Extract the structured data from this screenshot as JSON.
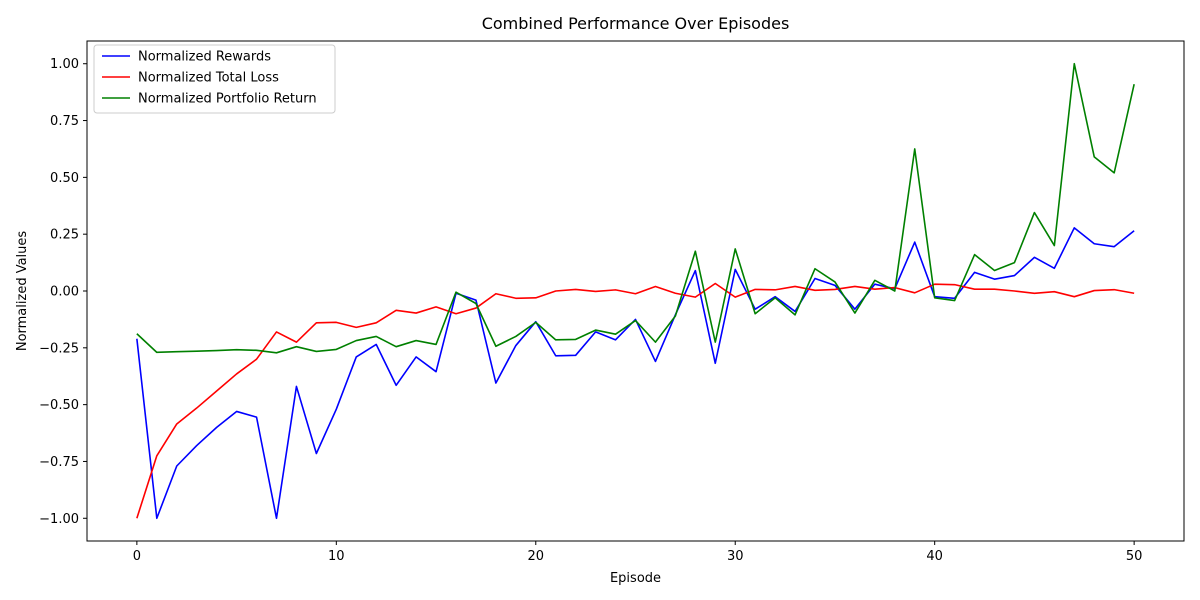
{
  "chart_data": {
    "type": "line",
    "title": "Combined Performance Over Episodes",
    "xlabel": "Episode",
    "ylabel": "Normalized Values",
    "xlim": [
      -2.5,
      52.5
    ],
    "ylim": [
      -1.1,
      1.1
    ],
    "xticks": [
      0,
      10,
      20,
      30,
      40,
      50
    ],
    "xtick_labels": [
      "0",
      "10",
      "20",
      "30",
      "40",
      "50"
    ],
    "yticks": [
      -1.0,
      -0.75,
      -0.5,
      -0.25,
      0.0,
      0.25,
      0.5,
      0.75,
      1.0
    ],
    "ytick_labels": [
      "−1.00",
      "−0.75",
      "−0.50",
      "−0.25",
      "0.00",
      "0.25",
      "0.50",
      "0.75",
      "1.00"
    ],
    "grid": false,
    "legend_position": "top-left",
    "x": [
      0,
      1,
      2,
      3,
      4,
      5,
      6,
      7,
      8,
      9,
      10,
      11,
      12,
      13,
      14,
      15,
      16,
      17,
      18,
      19,
      20,
      21,
      22,
      23,
      24,
      25,
      26,
      27,
      28,
      29,
      30,
      31,
      32,
      33,
      34,
      35,
      36,
      37,
      38,
      39,
      40,
      41,
      42,
      43,
      44,
      45,
      46,
      47,
      48,
      49,
      50
    ],
    "series": [
      {
        "name": "Normalized Rewards",
        "color": "#0000ff",
        "values": [
          -0.21,
          -1.0,
          -0.77,
          -0.68,
          -0.6,
          -0.53,
          -0.555,
          -1.0,
          -0.42,
          -0.715,
          -0.52,
          -0.29,
          -0.235,
          -0.415,
          -0.29,
          -0.355,
          -0.01,
          -0.04,
          -0.405,
          -0.24,
          -0.135,
          -0.285,
          -0.283,
          -0.18,
          -0.215,
          -0.125,
          -0.31,
          -0.105,
          0.09,
          -0.318,
          0.095,
          -0.08,
          -0.025,
          -0.09,
          0.055,
          0.025,
          -0.08,
          0.03,
          0.01,
          0.215,
          -0.025,
          -0.032,
          0.082,
          0.052,
          0.068,
          0.148,
          0.1,
          0.278,
          0.208,
          0.195,
          0.265
        ]
      },
      {
        "name": "Normalized Total Loss",
        "color": "#ff0000",
        "values": [
          -1.0,
          -0.725,
          -0.585,
          -0.515,
          -0.44,
          -0.365,
          -0.3,
          -0.18,
          -0.225,
          -0.14,
          -0.138,
          -0.16,
          -0.14,
          -0.085,
          -0.097,
          -0.07,
          -0.1,
          -0.075,
          -0.012,
          -0.032,
          -0.03,
          0.0,
          0.007,
          -0.002,
          0.005,
          -0.012,
          0.02,
          -0.01,
          -0.027,
          0.033,
          -0.027,
          0.007,
          0.005,
          0.02,
          0.003,
          0.007,
          0.02,
          0.008,
          0.015,
          -0.008,
          0.03,
          0.028,
          0.008,
          0.008,
          0.0,
          -0.01,
          -0.003,
          -0.025,
          0.002,
          0.006,
          -0.01
        ]
      },
      {
        "name": "Normalized Portfolio Return",
        "color": "#008000",
        "values": [
          -0.188,
          -0.27,
          -0.267,
          -0.265,
          -0.262,
          -0.258,
          -0.261,
          -0.272,
          -0.245,
          -0.266,
          -0.257,
          -0.218,
          -0.2,
          -0.245,
          -0.218,
          -0.235,
          -0.005,
          -0.055,
          -0.243,
          -0.2,
          -0.138,
          -0.215,
          -0.213,
          -0.172,
          -0.19,
          -0.13,
          -0.225,
          -0.11,
          0.175,
          -0.225,
          0.185,
          -0.1,
          -0.03,
          -0.105,
          0.098,
          0.04,
          -0.097,
          0.047,
          0.0,
          0.625,
          -0.03,
          -0.042,
          0.16,
          0.09,
          0.125,
          0.345,
          0.2,
          1.0,
          0.59,
          0.52,
          0.91
        ]
      }
    ]
  }
}
